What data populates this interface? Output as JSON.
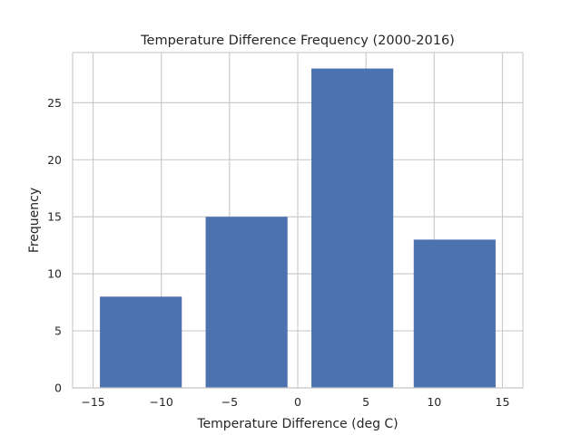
{
  "chart_data": {
    "type": "bar",
    "title": "Temperature Difference Frequency (2000-2016)",
    "xlabel": "Temperature Difference (deg C)",
    "ylabel": "Frequency",
    "x_tick_labels": [
      "−15",
      "−10",
      "−5",
      "0",
      "5",
      "10",
      "15"
    ],
    "y_tick_labels": [
      "0",
      "5",
      "10",
      "15",
      "20",
      "25"
    ],
    "x_ticks": [
      -15,
      -10,
      -5,
      0,
      5,
      10,
      15
    ],
    "y_ticks": [
      0,
      5,
      10,
      15,
      20,
      25
    ],
    "xlim": [
      -16.5,
      16.5
    ],
    "ylim": [
      0,
      29.4
    ],
    "bars": [
      {
        "x": -11.5,
        "width": 6,
        "value": 8
      },
      {
        "x": -3.75,
        "width": 6,
        "value": 15
      },
      {
        "x": 4.0,
        "width": 6,
        "value": 28
      },
      {
        "x": 11.5,
        "width": 6,
        "value": 13
      }
    ],
    "grid": true,
    "bar_color": "#4c72b0"
  }
}
